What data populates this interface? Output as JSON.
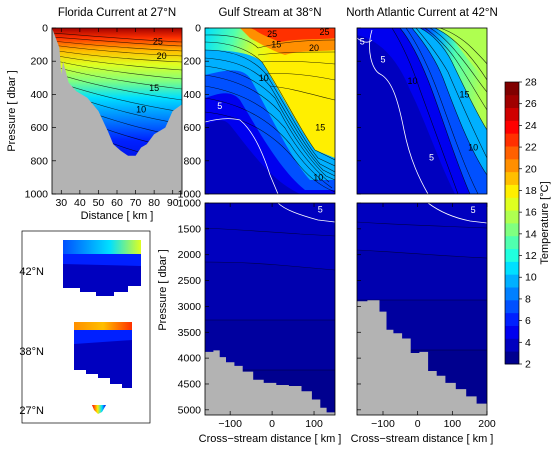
{
  "colors": {
    "land": "#b3b3b3",
    "frame": "#000000",
    "isotherm": "#000000",
    "isotherm_5": "#ffffff",
    "scale": [
      "#00008f",
      "#0000bf",
      "#0000ef",
      "#0020ff",
      "#0050ff",
      "#0080ff",
      "#00b0ff",
      "#00e0ff",
      "#20ffdf",
      "#50ffaf",
      "#80ff80",
      "#afff50",
      "#dfff20",
      "#ffef00",
      "#ffbf00",
      "#ff8f00",
      "#ff6000",
      "#ff3000",
      "#ff0000",
      "#cf0000",
      "#a00000",
      "#800000"
    ]
  },
  "chart_data": [
    {
      "panel": "florida",
      "type": "heatmap",
      "title": "Florida Current at 27°N",
      "xlabel": "Distance [ km ]",
      "ylabel": "Pressure [ dbar ]",
      "x_range": [
        25,
        95
      ],
      "y_range": [
        0,
        1000
      ],
      "x_ticks": [
        30,
        40,
        50,
        60,
        70,
        80,
        90
      ],
      "y_ticks": [
        0,
        200,
        400,
        600,
        800,
        1000
      ],
      "contour_labels": [
        {
          "text": "25",
          "x": 82,
          "y": 80
        },
        {
          "text": "20",
          "x": 84,
          "y": 170
        },
        {
          "text": "15",
          "x": 80,
          "y": 360
        },
        {
          "text": "10",
          "x": 73,
          "y": 490
        }
      ],
      "bottom_depth": [
        [
          25,
          0
        ],
        [
          29,
          120
        ],
        [
          30,
          280
        ],
        [
          31,
          200
        ],
        [
          34,
          330
        ],
        [
          38,
          380
        ],
        [
          44,
          420
        ],
        [
          50,
          500
        ],
        [
          55,
          620
        ],
        [
          58,
          700
        ],
        [
          62,
          740
        ],
        [
          66,
          770
        ],
        [
          70,
          770
        ],
        [
          73,
          720
        ],
        [
          76,
          700
        ],
        [
          80,
          640
        ],
        [
          86,
          600
        ],
        [
          90,
          500
        ],
        [
          95,
          460
        ]
      ]
    },
    {
      "panel": "gulf_stream",
      "type": "heatmap",
      "title": "Gulf Stream at 38°N",
      "xlabel": "Cross−stream distance [ km ]",
      "ylabel": "Pressure [ dbar ]",
      "x_range": [
        -160,
        150
      ],
      "y_range_upper": [
        0,
        1000
      ],
      "y_range_lower": [
        1000,
        5100
      ],
      "x_ticks": [
        -100,
        0,
        100
      ],
      "y_ticks_upper": [
        0,
        200,
        400,
        600,
        800,
        1000
      ],
      "y_ticks_lower": [
        1000,
        1500,
        2000,
        2500,
        3000,
        3500,
        4000,
        4500,
        5000
      ],
      "contour_labels": [
        {
          "text": "25",
          "x": 0,
          "y": 35
        },
        {
          "text": "25",
          "x": 125,
          "y": 25
        },
        {
          "text": "20",
          "x": 100,
          "y": 120
        },
        {
          "text": "15",
          "x": 10,
          "y": 100
        },
        {
          "text": "10",
          "x": -20,
          "y": 300
        },
        {
          "text": "5",
          "x": -125,
          "y": 470
        },
        {
          "text": "15",
          "x": 115,
          "y": 600
        },
        {
          "text": "10",
          "x": 110,
          "y": 900
        },
        {
          "text": "5",
          "x": 115,
          "y": 1130
        }
      ],
      "bottom_depth": [
        [
          -160,
          3880
        ],
        [
          -140,
          3850
        ],
        [
          -125,
          3980
        ],
        [
          -110,
          4080
        ],
        [
          -90,
          4150
        ],
        [
          -70,
          4260
        ],
        [
          -45,
          4420
        ],
        [
          -20,
          4480
        ],
        [
          10,
          4520
        ],
        [
          40,
          4540
        ],
        [
          70,
          4640
        ],
        [
          95,
          4800
        ],
        [
          115,
          4960
        ],
        [
          130,
          5050
        ],
        [
          150,
          5100
        ]
      ]
    },
    {
      "panel": "north_atlantic",
      "type": "heatmap",
      "title": "North Atlantic Current at 42°N",
      "xlabel": "Cross−stream distance [ km ]",
      "x_range": [
        -175,
        200
      ],
      "y_range_upper": [
        0,
        1000
      ],
      "y_range_lower": [
        1000,
        5100
      ],
      "x_ticks": [
        -100,
        0,
        100,
        200
      ],
      "contour_labels": [
        {
          "text": "5",
          "x": -160,
          "y": 80
        },
        {
          "text": "5",
          "x": -100,
          "y": 190
        },
        {
          "text": "10",
          "x": -15,
          "y": 320
        },
        {
          "text": "15",
          "x": 135,
          "y": 400
        },
        {
          "text": "10",
          "x": 160,
          "y": 720
        },
        {
          "text": "5",
          "x": 40,
          "y": 780
        },
        {
          "text": "5",
          "x": 160,
          "y": 1140
        }
      ],
      "bottom_depth": [
        [
          -175,
          2900
        ],
        [
          -145,
          2880
        ],
        [
          -110,
          3100
        ],
        [
          -90,
          3450
        ],
        [
          -70,
          3520
        ],
        [
          -45,
          3620
        ],
        [
          -20,
          3900
        ],
        [
          5,
          3880
        ],
        [
          30,
          4250
        ],
        [
          55,
          4340
        ],
        [
          80,
          4480
        ],
        [
          110,
          4600
        ],
        [
          140,
          4740
        ],
        [
          170,
          4880
        ],
        [
          200,
          5000
        ]
      ]
    }
  ],
  "colorbar": {
    "label": "Temperature [°C]",
    "min": 2,
    "max": 28,
    "ticks": [
      2,
      4,
      6,
      8,
      10,
      12,
      14,
      16,
      18,
      20,
      22,
      24,
      26,
      28
    ]
  },
  "inset": {
    "latitude_labels": [
      "42°N",
      "38°N",
      "27°N"
    ]
  }
}
